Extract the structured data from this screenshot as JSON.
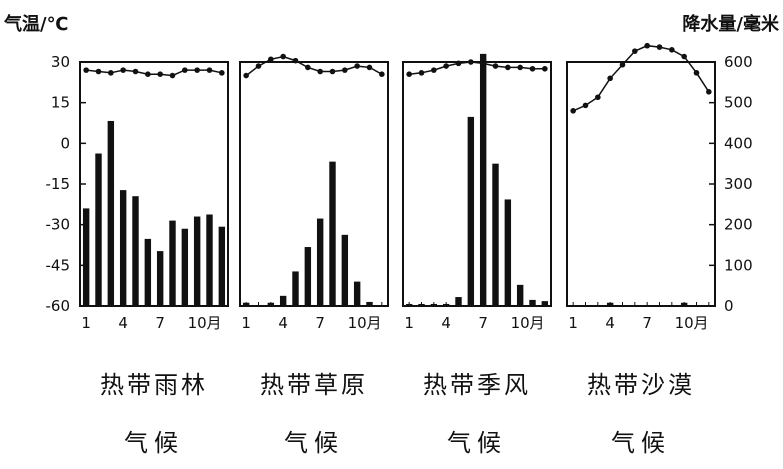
{
  "left_axis_title": "气温/℃",
  "right_axis_title": "降水量/毫米",
  "left_ticks": [
    "30",
    "15",
    "0",
    "-15",
    "-30",
    "-45",
    "-60"
  ],
  "right_ticks": [
    "600",
    "500",
    "400",
    "300",
    "200",
    "100",
    "0"
  ],
  "month_unit": "月",
  "chart_data": [
    {
      "type": "bar",
      "caption": [
        "热带雨林",
        "气候"
      ],
      "categories": [
        "1",
        "2",
        "3",
        "4",
        "5",
        "6",
        "7",
        "8",
        "9",
        "10",
        "11",
        "12"
      ],
      "x_tick_labels": [
        "1",
        "4",
        "7",
        "10"
      ],
      "series": [
        {
          "values": [
            240,
            375,
            455,
            285,
            270,
            165,
            135,
            210,
            190,
            220,
            225,
            195
          ]
        },
        {
          "type": "line",
          "values": [
            27,
            26.5,
            26,
            27,
            26.5,
            25.5,
            25.5,
            25,
            27,
            27,
            27,
            26
          ]
        }
      ],
      "ylim_left": [
        -60,
        30
      ],
      "ylim_right": [
        0,
        600
      ]
    },
    {
      "type": "bar",
      "caption": [
        "热带草原",
        "气候"
      ],
      "categories": [
        "1",
        "2",
        "3",
        "4",
        "5",
        "6",
        "7",
        "8",
        "9",
        "10",
        "11",
        "12"
      ],
      "x_tick_labels": [
        "1",
        "4",
        "7",
        "10"
      ],
      "series": [
        {
          "values": [
            8,
            0,
            8,
            25,
            85,
            145,
            215,
            355,
            175,
            60,
            10,
            0
          ]
        },
        {
          "type": "line",
          "values": [
            25,
            28.5,
            31,
            32,
            30.5,
            28,
            26.5,
            26.5,
            27,
            28.5,
            28,
            25.5
          ]
        }
      ],
      "ylim_left": [
        -60,
        30
      ],
      "ylim_right": [
        0,
        600
      ]
    },
    {
      "type": "bar",
      "caption": [
        "热带季风",
        "气候"
      ],
      "categories": [
        "1",
        "2",
        "3",
        "4",
        "5",
        "6",
        "7",
        "8",
        "9",
        "10",
        "11",
        "12"
      ],
      "x_tick_labels": [
        "1",
        "4",
        "7",
        "10"
      ],
      "series": [
        {
          "values": [
            5,
            5,
            5,
            5,
            22,
            465,
            620,
            350,
            262,
            52,
            15,
            12
          ]
        },
        {
          "type": "line",
          "values": [
            25.5,
            26,
            27,
            28.5,
            29.5,
            30,
            29.5,
            28.5,
            28,
            28,
            27.5,
            27.5
          ]
        }
      ],
      "ylim_left": [
        -60,
        30
      ],
      "ylim_right": [
        0,
        600
      ]
    },
    {
      "type": "bar",
      "caption": [
        "热带沙漠",
        "气候"
      ],
      "categories": [
        "1",
        "2",
        "3",
        "4",
        "5",
        "6",
        "7",
        "8",
        "9",
        "10",
        "11",
        "12"
      ],
      "x_tick_labels": [
        "1",
        "4",
        "7",
        "10"
      ],
      "series": [
        {
          "values": [
            0,
            0,
            0,
            8,
            0,
            0,
            0,
            0,
            0,
            8,
            0,
            0
          ]
        },
        {
          "type": "line",
          "values": [
            12,
            14,
            17,
            24,
            29,
            34,
            36,
            35.5,
            34.5,
            32,
            26,
            19
          ]
        }
      ],
      "ylim_left": [
        -60,
        30
      ],
      "ylim_right": [
        0,
        600
      ]
    }
  ]
}
